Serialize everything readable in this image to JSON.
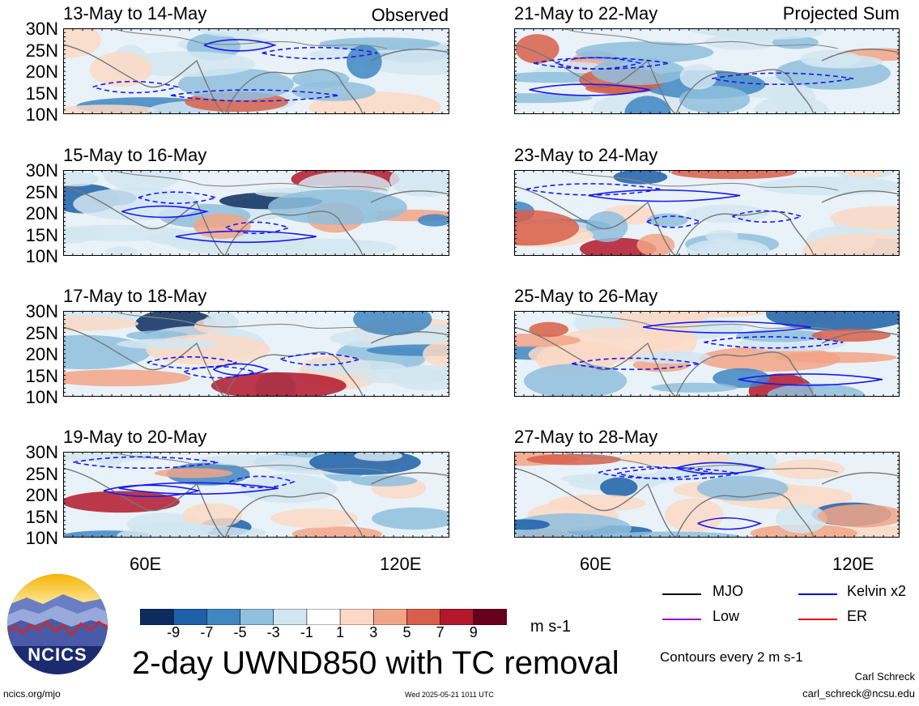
{
  "header": {
    "observed_label": "Observed",
    "projected_label": "Projected Sum"
  },
  "lat_ticks": [
    "30N",
    "25N",
    "20N",
    "15N",
    "10N"
  ],
  "lon_ticks": [
    "60E",
    "120E"
  ],
  "panels_left": [
    {
      "title": "13-May to 14-May"
    },
    {
      "title": "15-May to 16-May"
    },
    {
      "title": "17-May to 18-May"
    },
    {
      "title": "19-May to 20-May"
    }
  ],
  "panels_right": [
    {
      "title": "21-May to 22-May"
    },
    {
      "title": "23-May to 24-May"
    },
    {
      "title": "25-May to 26-May"
    },
    {
      "title": "27-May to 28-May"
    }
  ],
  "colorbar": {
    "labels": [
      "-9",
      "-7",
      "-5",
      "-3",
      "-1",
      "1",
      "3",
      "5",
      "7",
      "9"
    ],
    "colors": [
      "#0a2d5e",
      "#1d5fa8",
      "#3f86c2",
      "#8fc0dd",
      "#d2e6f1",
      "#ffffff",
      "#fbd9c6",
      "#f2a586",
      "#d85f4a",
      "#b2182b",
      "#67001f"
    ],
    "units": "m s-1"
  },
  "legend": {
    "items": [
      {
        "label": "MJO",
        "color": "#000000"
      },
      {
        "label": "Kelvin x2",
        "color": "#0000dd"
      },
      {
        "label": "Low",
        "color": "#9900cc"
      },
      {
        "label": "ER",
        "color": "#dd0000"
      }
    ],
    "contour_note": "Contours every 2 m s-1"
  },
  "footer": {
    "main_title": "2-day UWND850 with TC removal",
    "logo_text": "NCICS",
    "site": "ncics.org/mjo",
    "timestamp": "Wed 2025-05-21 1011 UTC",
    "author": "Carl Schreck",
    "email": "carl_schreck@ncsu.edu"
  }
}
